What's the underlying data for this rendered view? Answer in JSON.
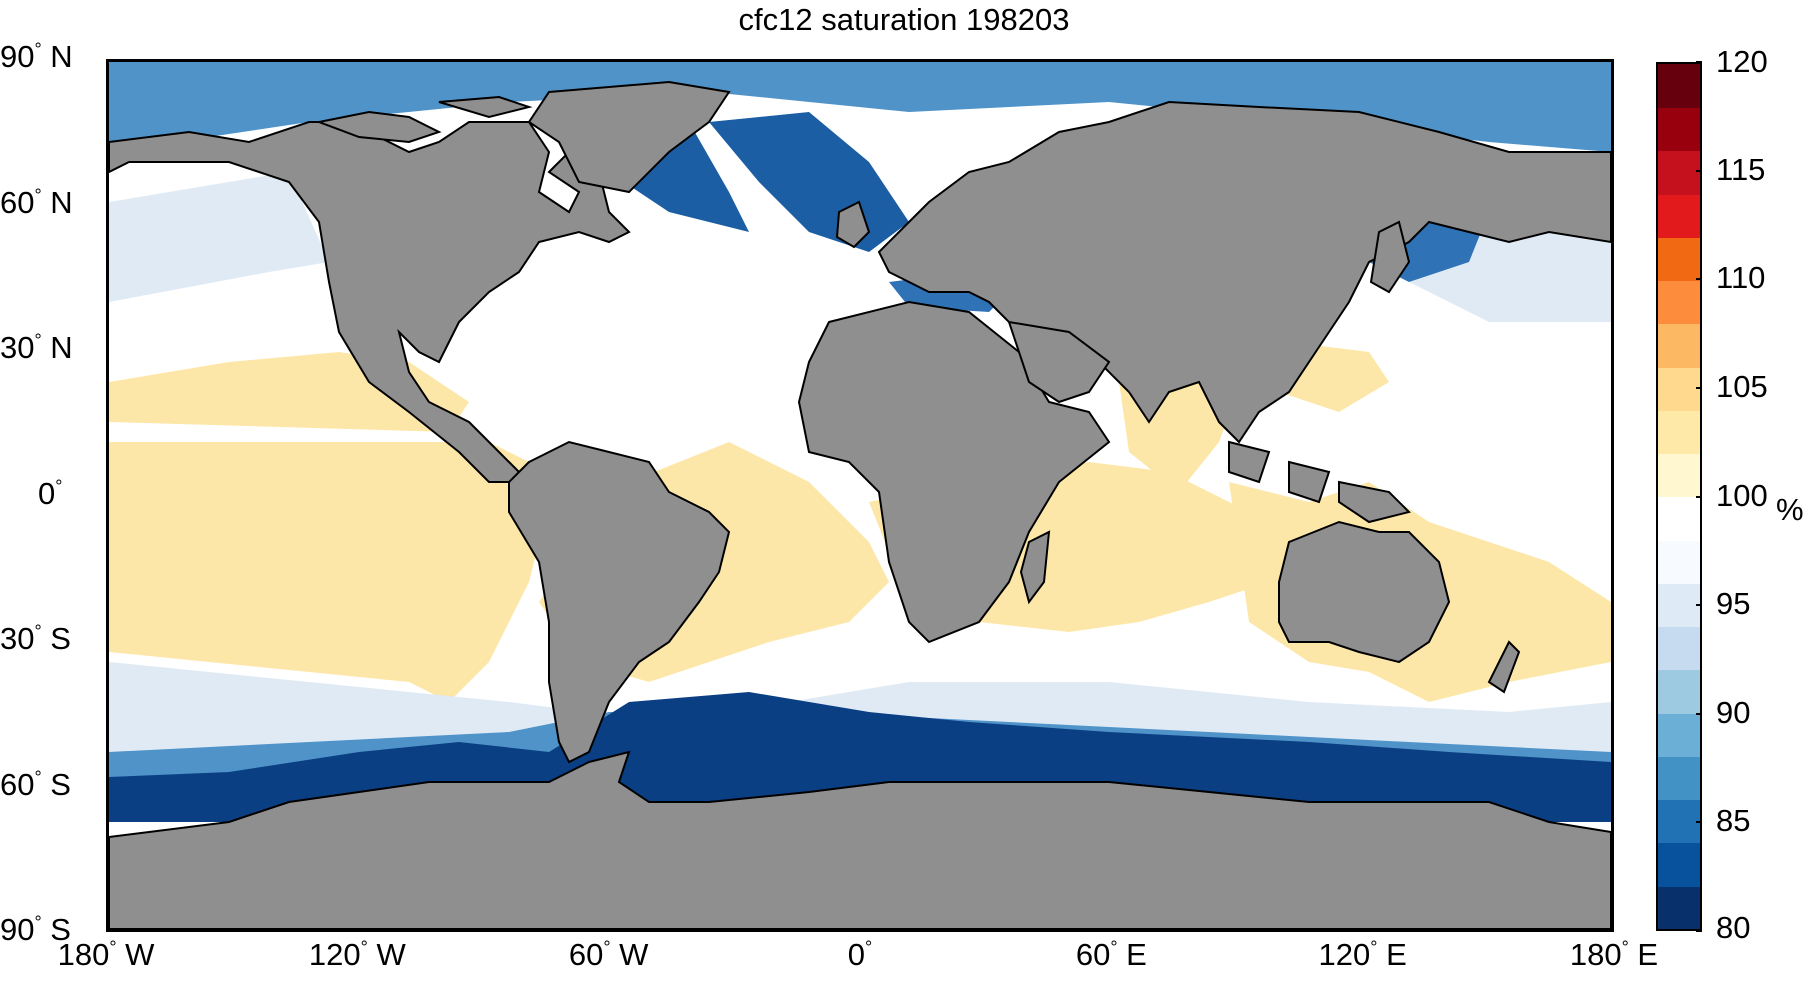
{
  "title": "cfc12 saturation 198203",
  "y_labels": [
    {
      "text": "90",
      "hemi": "N",
      "lat": 90
    },
    {
      "text": "60",
      "hemi": "N",
      "lat": 60
    },
    {
      "text": "30",
      "hemi": "N",
      "lat": 30
    },
    {
      "text": "0",
      "hemi": "",
      "lat": 0
    },
    {
      "text": "30",
      "hemi": "S",
      "lat": -30
    },
    {
      "text": "60",
      "hemi": "S",
      "lat": -60
    },
    {
      "text": "90",
      "hemi": "S",
      "lat": -90
    }
  ],
  "x_labels": [
    {
      "text": "180",
      "hemi": "W",
      "lon": -180
    },
    {
      "text": "120",
      "hemi": "W",
      "lon": -120
    },
    {
      "text": "60",
      "hemi": "W",
      "lon": -60
    },
    {
      "text": "0",
      "hemi": "",
      "lon": 0
    },
    {
      "text": "60",
      "hemi": "E",
      "lon": 60
    },
    {
      "text": "120",
      "hemi": "E",
      "lon": 120
    },
    {
      "text": "180",
      "hemi": "E",
      "lon": 180
    }
  ],
  "colorbar": {
    "min": 80,
    "max": 120,
    "ticks": [
      "80",
      "85",
      "90",
      "95",
      "100",
      "105",
      "110",
      "115",
      "120"
    ],
    "unit": "%",
    "colors_low_to_high": [
      "#08306b",
      "#08519c",
      "#2171b5",
      "#4292c6",
      "#6baed6",
      "#9ecae1",
      "#c6dbef",
      "#deebf7",
      "#f7fbff",
      "#ffffff",
      "#fff7d0",
      "#fee9a8",
      "#fed98e",
      "#fdb863",
      "#fd8d3c",
      "#f16913",
      "#e31a1c",
      "#c4111d",
      "#99000d",
      "#67000d"
    ]
  },
  "colors": {
    "land": "#8f8f8f",
    "ocean_neutral": "#ffffff",
    "supersaturated": "#fde8a8",
    "undersaturated_strong": "#0b3f84",
    "undersaturated_mid": "#4a8fc8"
  }
}
